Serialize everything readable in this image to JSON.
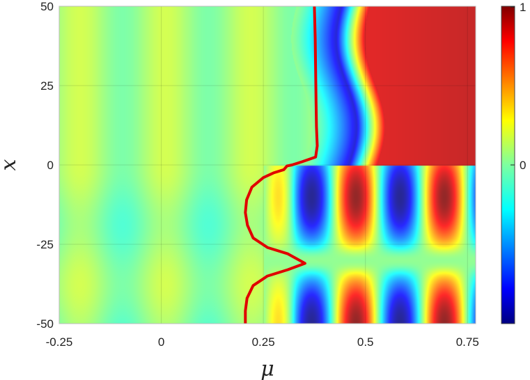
{
  "chart_data": {
    "type": "heatmap",
    "title": "",
    "xlabel": "μ",
    "ylabel": "x",
    "xlim": [
      -0.25,
      0.77
    ],
    "ylim": [
      -50,
      50
    ],
    "x_ticks": [
      -0.25,
      0,
      0.25,
      0.5,
      0.75
    ],
    "x_tick_labels": [
      "-0.25",
      "0",
      "0.25",
      "0.5",
      "0.75"
    ],
    "y_ticks": [
      50,
      25,
      0,
      -25,
      -50
    ],
    "y_tick_labels": [
      "50",
      "25",
      "0",
      "-25",
      "-50"
    ],
    "grid": true,
    "colormap": "jet",
    "colorbar": {
      "range": [
        -1,
        1
      ],
      "ticks": [
        1,
        0
      ],
      "tick_labels": [
        "1",
        "0"
      ],
      "placement": "right"
    },
    "field_description": "upper half (x>0): ~0 for mu<0.35, negative trough near mu~0.45, rising to ~0.8-1 for mu>0.55; lower half (x<0): oscillating bands alternating positive/negative for mu>0.25 with node near x=-30",
    "contour": {
      "color": "#e00000",
      "points": [
        [
          0.206,
          -50
        ],
        [
          0.206,
          -46
        ],
        [
          0.21,
          -42
        ],
        [
          0.225,
          -38
        ],
        [
          0.26,
          -35
        ],
        [
          0.31,
          -33
        ],
        [
          0.352,
          -31
        ],
        [
          0.31,
          -28
        ],
        [
          0.26,
          -26
        ],
        [
          0.225,
          -23
        ],
        [
          0.211,
          -19
        ],
        [
          0.206,
          -15
        ],
        [
          0.209,
          -11
        ],
        [
          0.222,
          -7
        ],
        [
          0.25,
          -4
        ],
        [
          0.275,
          -2.5
        ],
        [
          0.3,
          -1.5
        ],
        [
          0.308,
          -0.3
        ],
        [
          0.32,
          0
        ],
        [
          0.345,
          1
        ],
        [
          0.378,
          2.5
        ],
        [
          0.382,
          6
        ],
        [
          0.38,
          12
        ],
        [
          0.379,
          20
        ],
        [
          0.378,
          30
        ],
        [
          0.377,
          40
        ],
        [
          0.375,
          50
        ]
      ]
    }
  }
}
